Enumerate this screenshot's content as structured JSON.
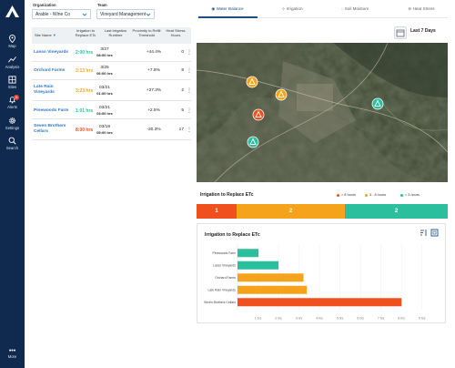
{
  "sidebar": {
    "items": [
      {
        "label": "Map",
        "icon": "map-pin-icon"
      },
      {
        "label": "Analysis",
        "icon": "analysis-icon"
      },
      {
        "label": "Sites",
        "icon": "sites-icon"
      },
      {
        "label": "Alerts",
        "icon": "bell-icon",
        "badge": "11"
      },
      {
        "label": "Settings",
        "icon": "gear-icon"
      },
      {
        "label": "Search",
        "icon": "search-icon"
      }
    ],
    "more_label": "More"
  },
  "filters": {
    "organization_label": "Organization",
    "organization_value": "Arable - Wine Co",
    "team_label": "Team",
    "team_value": "Vineyard Management"
  },
  "table": {
    "headers": {
      "site_name": "Site Name",
      "irrigation": "Irrigation to Replace ETc",
      "last_irrigation": "Last Irrigation Runtime",
      "proximity": "Proximity to Refill Threshold",
      "heat_stress": "Heat Stress Hours"
    },
    "rows": [
      {
        "site": "Lasso Vineyards",
        "hours": "2:00 hrs",
        "color": "#2bbf9e",
        "date": "3/27",
        "time": "08:00 hrs",
        "proximity": "+44.4%",
        "heat": "0"
      },
      {
        "site": "Orchard Farms",
        "hours": "3:13 hrs",
        "color": "#f5a31a",
        "date": "3/25",
        "time": "06:00 hrs",
        "proximity": "+7.8%",
        "heat": "8"
      },
      {
        "site": "Late Rain Vineyards",
        "hours": "3:23 hrs",
        "color": "#f5a31a",
        "date": "03/21",
        "time": "01:00 hrs",
        "proximity": "+27.3%",
        "heat": "2"
      },
      {
        "site": "Pinewoods Farm",
        "hours": "1:01 hrs",
        "color": "#2bbf9e",
        "date": "03/21",
        "time": "03:00 hrs",
        "proximity": "+2.5%",
        "heat": "5"
      },
      {
        "site": "Seven Brothers Cellars",
        "hours": "8:00 hrs",
        "color": "#f0501e",
        "date": "03/18",
        "time": "05:00 hrs",
        "proximity": "-20.3%",
        "heat": "17"
      }
    ]
  },
  "tabs": [
    {
      "label": "Water Balance",
      "active": true
    },
    {
      "label": "Irrigation",
      "active": false
    },
    {
      "label": "Soil Moisture",
      "active": false
    },
    {
      "label": "Heat Stress",
      "active": false
    }
  ],
  "date_range_label": "Last 7 Days",
  "irrigation_summary": {
    "title": "Irrigation to Replace ETc",
    "legend": [
      "> 8 hours",
      "3 - 8 hours",
      "< 3 hours"
    ],
    "segments": [
      {
        "value": "1",
        "color": "#f0501e"
      },
      {
        "value": "2",
        "color": "#f5a31a"
      },
      {
        "value": "2",
        "color": "#2bbf9e"
      }
    ]
  },
  "chart_data": {
    "type": "bar",
    "orientation": "horizontal",
    "title": "Irrigation to Replace ETc",
    "categories": [
      "Pinewoods Farm",
      "Lasso Vineyards",
      "Orchard Farms",
      "Late Rain Vineyards",
      "Seven Brothers Cellars"
    ],
    "values": [
      1.02,
      2.0,
      3.22,
      3.38,
      8.0
    ],
    "colors": [
      "#2bbf9e",
      "#2bbf9e",
      "#f5a31a",
      "#f5a31a",
      "#f0501e"
    ],
    "xticks": [
      "1 hrs",
      "2 hrs",
      "3 hrs",
      "4 hrs",
      "5 hrs",
      "6 hrs",
      "7 hrs",
      "8 hrs",
      "9 hrs"
    ],
    "xlim": [
      0,
      9.5
    ],
    "grid": true
  }
}
